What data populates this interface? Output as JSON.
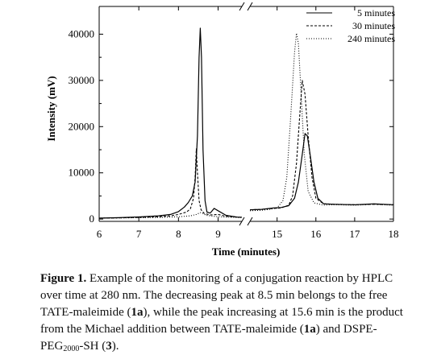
{
  "chart_data": {
    "type": "line",
    "xlabel": "Time (minutes)",
    "ylabel": "Intensity (mV)",
    "x_ticks": [
      6,
      7,
      8,
      9,
      15,
      16,
      17,
      18
    ],
    "y_ticks": [
      0,
      10000,
      20000,
      30000,
      40000
    ],
    "x_break": [
      9.6,
      14.3
    ],
    "xlim_left": [
      6,
      9.6
    ],
    "xlim_right": [
      14.3,
      18
    ],
    "ylim": [
      -500,
      46000
    ],
    "legend_position": "top-right",
    "series": [
      {
        "name": "5 minutes",
        "style": "solid",
        "color": "#000000",
        "left": [
          [
            6,
            200
          ],
          [
            6.5,
            300
          ],
          [
            7,
            450
          ],
          [
            7.5,
            700
          ],
          [
            7.8,
            1000
          ],
          [
            8.0,
            1600
          ],
          [
            8.15,
            2600
          ],
          [
            8.25,
            3600
          ],
          [
            8.35,
            5000
          ],
          [
            8.42,
            8000
          ],
          [
            8.48,
            18000
          ],
          [
            8.52,
            35000
          ],
          [
            8.55,
            41300
          ],
          [
            8.58,
            35000
          ],
          [
            8.62,
            15000
          ],
          [
            8.67,
            4000
          ],
          [
            8.72,
            1500
          ],
          [
            8.8,
            1300
          ],
          [
            8.9,
            2300
          ],
          [
            9.0,
            1800
          ],
          [
            9.2,
            800
          ],
          [
            9.5,
            400
          ],
          [
            9.6,
            400
          ]
        ],
        "right": [
          [
            14.3,
            2000
          ],
          [
            14.6,
            2100
          ],
          [
            14.9,
            2400
          ],
          [
            15.1,
            2500
          ],
          [
            15.3,
            2900
          ],
          [
            15.45,
            4500
          ],
          [
            15.55,
            8000
          ],
          [
            15.65,
            14000
          ],
          [
            15.72,
            18500
          ],
          [
            15.78,
            18000
          ],
          [
            15.85,
            14000
          ],
          [
            15.95,
            8000
          ],
          [
            16.05,
            4500
          ],
          [
            16.2,
            3300
          ],
          [
            16.5,
            3200
          ],
          [
            17,
            3100
          ],
          [
            17.5,
            3300
          ],
          [
            18,
            3100
          ]
        ]
      },
      {
        "name": "30 minutes",
        "style": "dashed",
        "color": "#000000",
        "left": [
          [
            6,
            200
          ],
          [
            6.5,
            250
          ],
          [
            7,
            350
          ],
          [
            7.5,
            500
          ],
          [
            7.8,
            700
          ],
          [
            8.0,
            1000
          ],
          [
            8.2,
            1500
          ],
          [
            8.3,
            2200
          ],
          [
            8.38,
            4500
          ],
          [
            8.42,
            9000
          ],
          [
            8.45,
            15200
          ],
          [
            8.48,
            10000
          ],
          [
            8.52,
            4000
          ],
          [
            8.57,
            2000
          ],
          [
            8.65,
            1200
          ],
          [
            8.8,
            900
          ],
          [
            9.0,
            1000
          ],
          [
            9.2,
            600
          ],
          [
            9.6,
            350
          ]
        ],
        "right": [
          [
            14.3,
            2000
          ],
          [
            14.6,
            2100
          ],
          [
            14.9,
            2300
          ],
          [
            15.1,
            2400
          ],
          [
            15.3,
            3000
          ],
          [
            15.4,
            5000
          ],
          [
            15.5,
            12000
          ],
          [
            15.58,
            22000
          ],
          [
            15.65,
            30000
          ],
          [
            15.72,
            27000
          ],
          [
            15.8,
            18000
          ],
          [
            15.9,
            9000
          ],
          [
            16.0,
            4500
          ],
          [
            16.2,
            3300
          ],
          [
            16.5,
            3200
          ],
          [
            17,
            3100
          ],
          [
            17.5,
            3200
          ],
          [
            18,
            3100
          ]
        ]
      },
      {
        "name": "240 minutes",
        "style": "dotted",
        "color": "#000000",
        "left": [
          [
            6,
            200
          ],
          [
            6.5,
            250
          ],
          [
            7,
            300
          ],
          [
            7.5,
            350
          ],
          [
            8.0,
            500
          ],
          [
            8.3,
            700
          ],
          [
            8.45,
            1000
          ],
          [
            8.55,
            1400
          ],
          [
            8.62,
            1200
          ],
          [
            8.7,
            800
          ],
          [
            9.0,
            500
          ],
          [
            9.6,
            300
          ]
        ],
        "right": [
          [
            14.3,
            1800
          ],
          [
            14.6,
            1900
          ],
          [
            14.8,
            2100
          ],
          [
            15.0,
            2400
          ],
          [
            15.15,
            4000
          ],
          [
            15.25,
            9000
          ],
          [
            15.35,
            22000
          ],
          [
            15.45,
            36000
          ],
          [
            15.5,
            40200
          ],
          [
            15.55,
            38000
          ],
          [
            15.62,
            27000
          ],
          [
            15.7,
            14000
          ],
          [
            15.8,
            6000
          ],
          [
            15.95,
            3500
          ],
          [
            16.2,
            3000
          ],
          [
            16.5,
            3100
          ],
          [
            17,
            3000
          ],
          [
            17.5,
            3200
          ],
          [
            18,
            3000
          ]
        ]
      }
    ]
  },
  "caption": {
    "label": "Figure 1.",
    "text_1": " Example of the monitoring of a conjugation reaction by HPLC over time at 280 nm. The decreasing peak at 8.5 min belongs to the free TATE-maleimide (",
    "ref_1a_a": "1a",
    "text_2": "), while the peak increasing at 15.6 min is the product from the Michael addition between TATE-maleimide (",
    "ref_1a_b": "1a",
    "text_3": ") and DSPE-PEG",
    "sub_2000": "2000",
    "text_4": "-SH (",
    "ref_3": "3",
    "text_5": ")."
  }
}
